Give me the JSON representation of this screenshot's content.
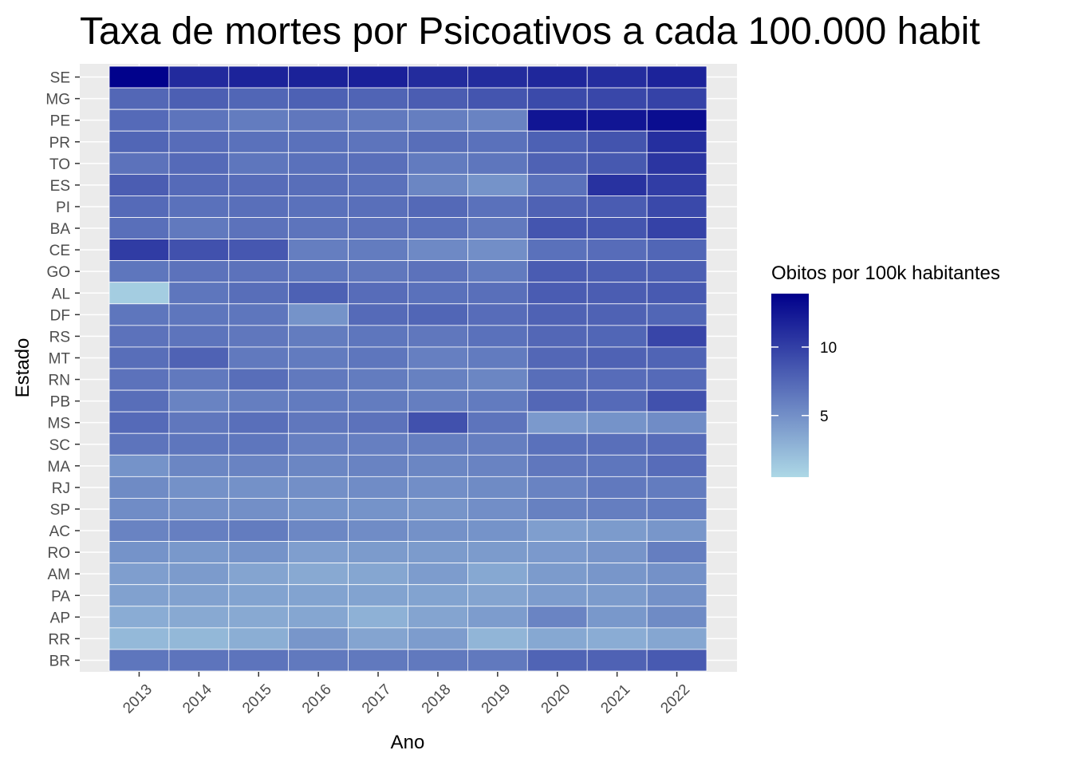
{
  "chart_data": {
    "type": "heatmap",
    "title": "Taxa de mortes por Psicoativos a cada 100.000 habit",
    "xlabel": "Ano",
    "ylabel": "Estado",
    "x": [
      "2013",
      "2014",
      "2015",
      "2016",
      "2017",
      "2018",
      "2019",
      "2020",
      "2021",
      "2022"
    ],
    "y": [
      "SE",
      "MG",
      "PE",
      "PR",
      "TO",
      "ES",
      "PI",
      "BA",
      "CE",
      "GO",
      "AL",
      "DF",
      "RS",
      "MT",
      "RN",
      "PB",
      "MS",
      "SC",
      "MA",
      "RJ",
      "SP",
      "AC",
      "RO",
      "AM",
      "PA",
      "AP",
      "RR",
      "BR"
    ],
    "values": [
      [
        13.8,
        11.3,
        11.7,
        11.8,
        11.9,
        11.2,
        11.2,
        11.5,
        11.1,
        11.7
      ],
      [
        7.5,
        8.0,
        7.6,
        7.9,
        7.7,
        8.1,
        8.6,
        9.3,
        9.5,
        9.8
      ],
      [
        7.3,
        6.7,
        6.2,
        6.5,
        6.4,
        6.1,
        5.8,
        12.6,
        12.6,
        13.1
      ],
      [
        7.6,
        7.2,
        6.9,
        6.9,
        6.7,
        7.1,
        6.9,
        7.9,
        8.7,
        11.0
      ],
      [
        6.8,
        7.3,
        6.6,
        6.9,
        7.0,
        6.3,
        6.6,
        7.8,
        8.4,
        10.6
      ],
      [
        8.1,
        7.3,
        7.2,
        7.1,
        6.9,
        5.6,
        4.8,
        6.9,
        10.8,
        10.1
      ],
      [
        7.3,
        6.9,
        7.0,
        6.9,
        7.0,
        7.4,
        6.9,
        7.8,
        8.2,
        9.4
      ],
      [
        7.0,
        6.4,
        6.8,
        6.7,
        6.8,
        6.9,
        6.4,
        8.6,
        8.6,
        9.8
      ],
      [
        10.2,
        8.9,
        8.5,
        6.1,
        6.2,
        5.4,
        5.1,
        6.9,
        7.2,
        7.6
      ],
      [
        6.6,
        6.8,
        6.8,
        6.6,
        6.5,
        6.8,
        6.3,
        8.2,
        8.0,
        8.0
      ],
      [
        1.2,
        6.6,
        7.1,
        7.9,
        7.2,
        6.9,
        7.0,
        8.2,
        8.1,
        8.3
      ],
      [
        6.6,
        6.6,
        6.6,
        4.8,
        7.3,
        7.6,
        7.2,
        7.8,
        7.8,
        7.6
      ],
      [
        6.8,
        6.7,
        6.5,
        6.2,
        6.6,
        6.5,
        6.9,
        7.5,
        7.6,
        9.6
      ],
      [
        7.1,
        7.8,
        6.4,
        6.3,
        6.6,
        6.0,
        6.3,
        7.5,
        7.8,
        7.7
      ],
      [
        6.8,
        6.4,
        7.1,
        6.4,
        6.2,
        5.9,
        5.6,
        7.1,
        7.2,
        7.3
      ],
      [
        7.1,
        5.8,
        6.1,
        6.3,
        6.2,
        6.1,
        6.3,
        7.5,
        7.3,
        8.9
      ],
      [
        7.3,
        6.5,
        7.0,
        6.5,
        6.8,
        8.9,
        6.7,
        4.4,
        4.8,
        5.2
      ],
      [
        6.7,
        6.6,
        6.6,
        6.0,
        6.0,
        6.1,
        6.1,
        6.9,
        7.0,
        7.2
      ],
      [
        4.8,
        5.6,
        5.8,
        5.6,
        5.8,
        5.6,
        5.8,
        6.5,
        6.6,
        7.2
      ],
      [
        5.3,
        4.9,
        4.9,
        5.0,
        5.2,
        5.1,
        5.3,
        5.8,
        6.4,
        6.2
      ],
      [
        5.2,
        5.0,
        5.0,
        4.8,
        4.8,
        4.7,
        5.1,
        5.9,
        6.1,
        6.3
      ],
      [
        5.8,
        6.0,
        6.2,
        5.5,
        5.2,
        4.9,
        4.8,
        4.1,
        4.3,
        4.6
      ],
      [
        4.8,
        4.5,
        4.8,
        4.1,
        4.3,
        4.3,
        4.3,
        4.4,
        4.7,
        6.1
      ],
      [
        4.1,
        4.3,
        3.7,
        3.4,
        3.6,
        4.2,
        3.5,
        4.3,
        4.6,
        4.9
      ],
      [
        3.9,
        3.9,
        3.8,
        3.8,
        3.8,
        3.8,
        3.7,
        4.2,
        4.3,
        4.9
      ],
      [
        3.2,
        3.4,
        3.4,
        3.6,
        2.9,
        3.7,
        4.2,
        5.7,
        4.5,
        5.3
      ],
      [
        2.4,
        2.5,
        3.1,
        4.6,
        3.7,
        4.2,
        2.7,
        3.5,
        3.2,
        3.6
      ],
      [
        6.6,
        6.7,
        6.7,
        6.4,
        6.4,
        6.4,
        6.4,
        7.7,
        7.8,
        8.3
      ]
    ],
    "scale": {
      "low_color": "#add8e6",
      "high_color": "#00008b",
      "min": 0.5,
      "max": 13.9
    },
    "legend": {
      "title": "Obitos por 100k habitantes",
      "ticks": [
        5,
        10
      ],
      "position": "right"
    },
    "panel_background": "#ebebeb",
    "grid": true
  }
}
